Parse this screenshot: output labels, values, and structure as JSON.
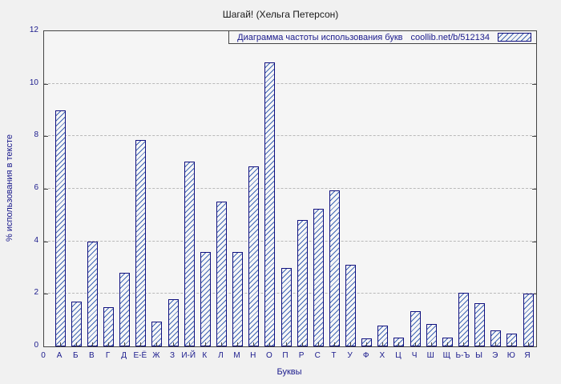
{
  "chart_data": {
    "type": "bar",
    "title": "Шагай! (Хельга Петерсон)",
    "legend_label": "Диаграмма частоты использования букв",
    "legend_url": "coollib.net/b/512134",
    "xlabel": "Буквы",
    "ylabel": "% использования в тексте",
    "origin_label": "0",
    "ylim": [
      0,
      12
    ],
    "yticks": [
      0,
      2,
      4,
      6,
      8,
      10,
      12
    ],
    "grid": "horizontal-dashed",
    "legend_position": "top-right-inside",
    "categories": [
      "А",
      "Б",
      "В",
      "Г",
      "Д",
      "Е-Ё",
      "Ж",
      "З",
      "И-Й",
      "К",
      "Л",
      "М",
      "Н",
      "О",
      "П",
      "Р",
      "С",
      "Т",
      "У",
      "Ф",
      "Х",
      "Ц",
      "Ч",
      "Ш",
      "Щ",
      "Ь-Ъ",
      "Ы",
      "Э",
      "Ю",
      "Я"
    ],
    "values": [
      9.0,
      1.7,
      4.0,
      1.5,
      2.8,
      7.85,
      0.95,
      1.8,
      7.05,
      3.6,
      5.5,
      3.6,
      6.85,
      10.8,
      3.0,
      4.8,
      5.25,
      5.95,
      3.1,
      0.3,
      0.8,
      0.35,
      1.35,
      0.85,
      0.35,
      2.05,
      1.65,
      0.6,
      0.5,
      2.0
    ],
    "colors": {
      "bar_outline": "#10107e",
      "bar_hatch": "#3f66b5",
      "axis_text": "#1a1a8c",
      "title_text": "#1a1a1a",
      "background": "#f1f1f1",
      "gridline": "#b9b9b9",
      "plot_border": "#444444"
    }
  }
}
